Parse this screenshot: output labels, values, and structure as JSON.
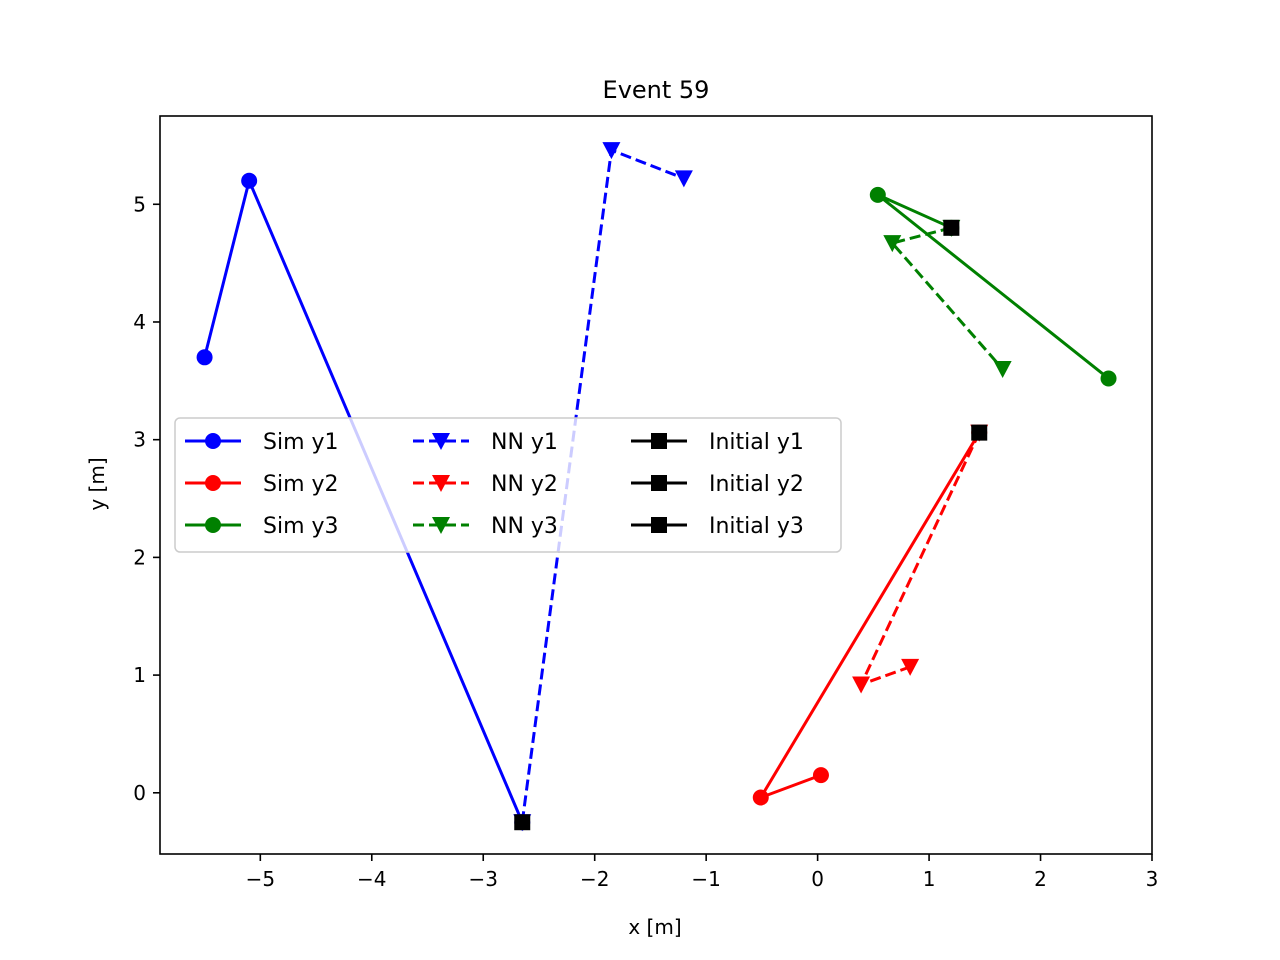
{
  "chart_data": {
    "type": "line",
    "title": "Event 59",
    "xlabel": "x [m]",
    "ylabel": "y [m]",
    "xlim": [
      -5.9,
      3.0
    ],
    "ylim": [
      -0.52,
      5.75
    ],
    "xticks": [
      -5,
      -4,
      -3,
      -2,
      -1,
      0,
      1,
      2,
      3
    ],
    "yticks": [
      0,
      1,
      2,
      3,
      4,
      5
    ],
    "xtick_labels": [
      "−5",
      "−4",
      "−3",
      "−2",
      "−1",
      "0",
      "1",
      "2",
      "3"
    ],
    "ytick_labels": [
      "0",
      "1",
      "2",
      "3",
      "4",
      "5"
    ],
    "grid": false,
    "legend": {
      "placement": "center-left",
      "columns": 3
    },
    "series": [
      {
        "name": "Sim y1",
        "color": "#0000ff",
        "style": "solid",
        "marker": "circle",
        "x": [
          -2.65,
          -5.1,
          -5.5
        ],
        "y": [
          -0.25,
          5.2,
          3.7
        ]
      },
      {
        "name": "Sim y2",
        "color": "#ff0000",
        "style": "solid",
        "marker": "circle",
        "x": [
          1.45,
          -0.51,
          0.03
        ],
        "y": [
          3.06,
          -0.04,
          0.15
        ]
      },
      {
        "name": "Sim y3",
        "color": "#008000",
        "style": "solid",
        "marker": "circle",
        "x": [
          1.2,
          0.54,
          2.61
        ],
        "y": [
          4.8,
          5.08,
          3.52
        ]
      },
      {
        "name": "NN y1",
        "color": "#0000ff",
        "style": "dashed",
        "marker": "triangle-down",
        "x": [
          -2.65,
          -1.85,
          -1.2
        ],
        "y": [
          -0.25,
          5.46,
          5.22
        ]
      },
      {
        "name": "NN y2",
        "color": "#ff0000",
        "style": "dashed",
        "marker": "triangle-down",
        "x": [
          1.45,
          0.39,
          0.83
        ],
        "y": [
          3.06,
          0.92,
          1.07
        ]
      },
      {
        "name": "NN y3",
        "color": "#008000",
        "style": "dashed",
        "marker": "triangle-down",
        "x": [
          1.2,
          0.67,
          1.66
        ],
        "y": [
          4.8,
          4.67,
          3.6
        ]
      },
      {
        "name": "Initial y1",
        "color": "#000000",
        "style": "solid",
        "marker": "square",
        "x": [
          -2.65
        ],
        "y": [
          -0.25
        ]
      },
      {
        "name": "Initial y2",
        "color": "#000000",
        "style": "solid",
        "marker": "square",
        "x": [
          1.45
        ],
        "y": [
          3.06
        ]
      },
      {
        "name": "Initial y3",
        "color": "#000000",
        "style": "solid",
        "marker": "square",
        "x": [
          1.2
        ],
        "y": [
          4.8
        ]
      }
    ]
  }
}
